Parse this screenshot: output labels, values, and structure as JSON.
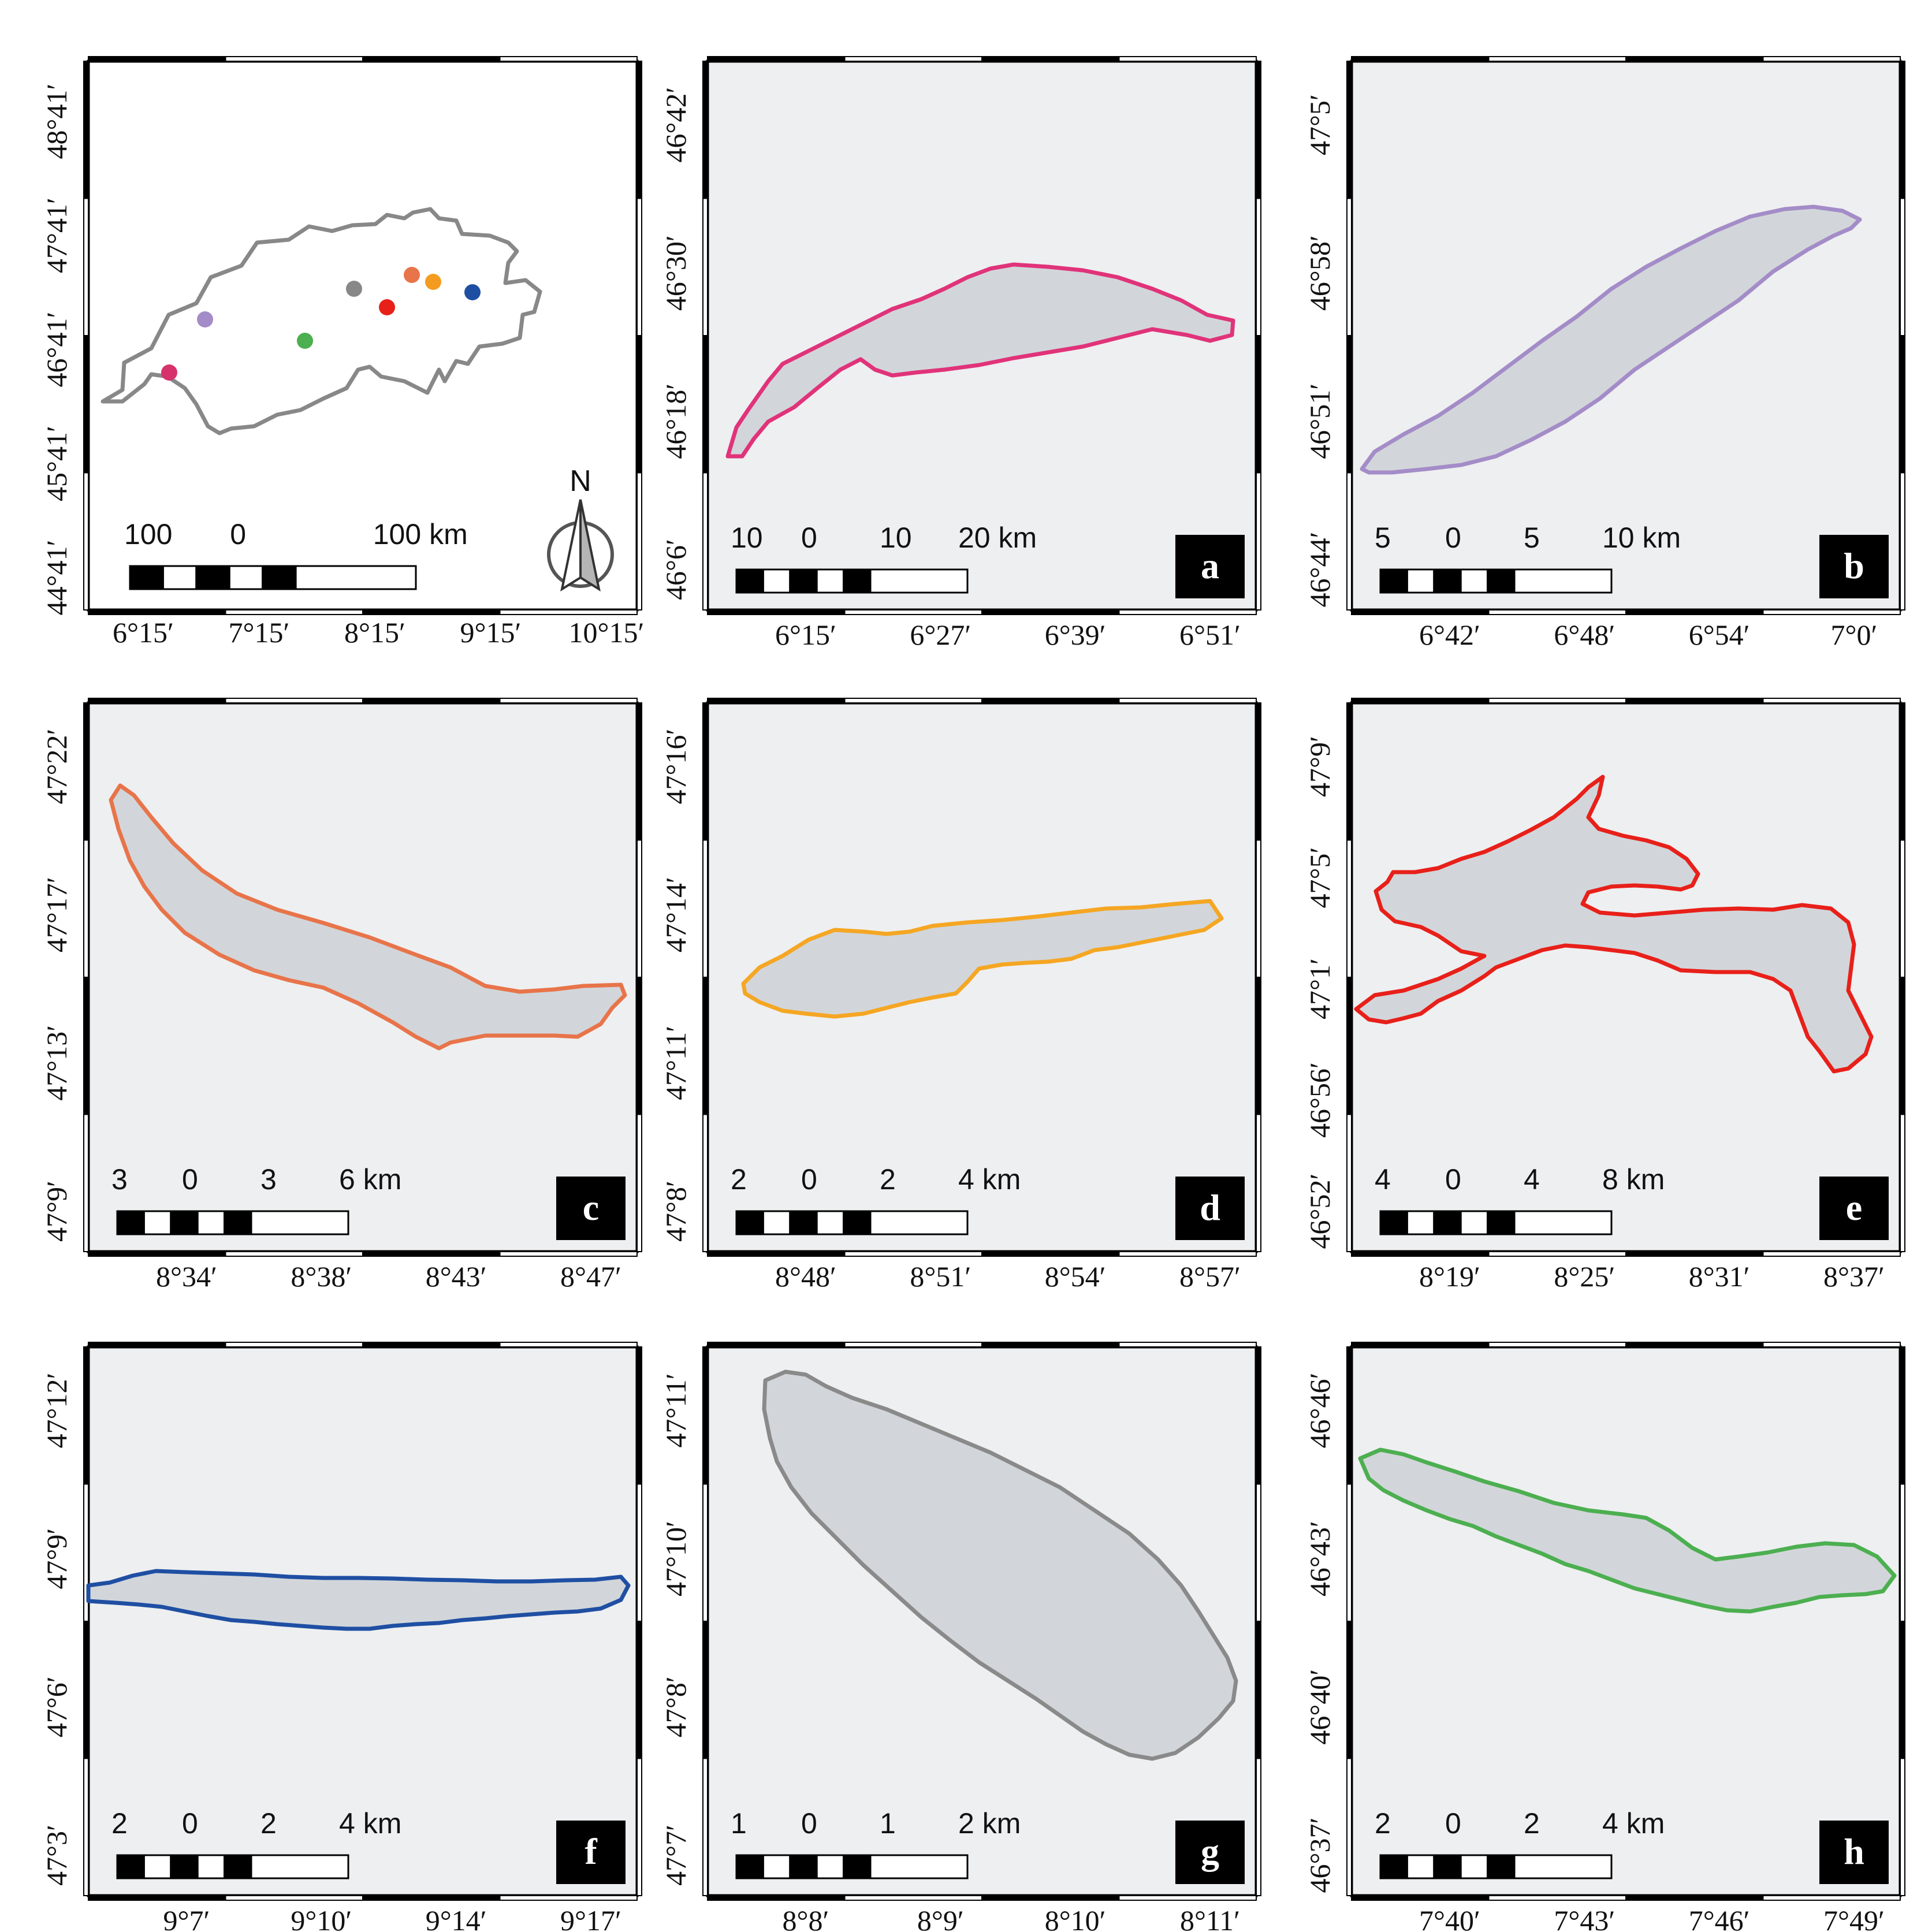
{
  "figure": {
    "background_map_color": "#eeeff0",
    "lake_fill": "#d2d6da",
    "transect_color": "#5cbd4c",
    "overview": {
      "y_labels": [
        "48°41′",
        "47°41′",
        "46°41′",
        "45°41′",
        "44°41′"
      ],
      "x_labels": [
        "6°15′",
        "7°15′",
        "8°15′",
        "9°15′",
        "10°15′"
      ],
      "scale_labels": [
        "100",
        "0",
        "100 km"
      ],
      "north_label": "N",
      "border_color": "#888888",
      "sites": [
        {
          "id": "a",
          "color": "#d6336c"
        },
        {
          "id": "b",
          "color": "#a48cc8"
        },
        {
          "id": "c",
          "color": "#e8744a"
        },
        {
          "id": "d",
          "color": "#f39c1f"
        },
        {
          "id": "e",
          "color": "#e8201a"
        },
        {
          "id": "f",
          "color": "#1f4fa3"
        },
        {
          "id": "g",
          "color": "#888888"
        },
        {
          "id": "h",
          "color": "#4caf50"
        }
      ]
    },
    "panels": [
      {
        "letter": "a",
        "outline": "#e0337a",
        "y_labels": [
          "46°42′",
          "46°30′",
          "46°18′",
          "46°6′"
        ],
        "x_labels": [
          "6°15′",
          "6°27′",
          "6°39′",
          "6°51′"
        ],
        "scale_labels": [
          "10",
          "0",
          "10",
          "20 km"
        ]
      },
      {
        "letter": "b",
        "outline": "#a48cc8",
        "y_labels": [
          "47°5′",
          "46°58′",
          "46°51′",
          "46°44′"
        ],
        "x_labels": [
          "6°42′",
          "6°48′",
          "6°54′",
          "7°0′"
        ],
        "scale_labels": [
          "5",
          "0",
          "5",
          "10 km"
        ]
      },
      {
        "letter": "c",
        "outline": "#e8744a",
        "y_labels": [
          "47°22′",
          "47°17′",
          "47°13′",
          "47°9′"
        ],
        "x_labels": [
          "8°34′",
          "8°38′",
          "8°43′",
          "8°47′"
        ],
        "scale_labels": [
          "3",
          "0",
          "3",
          "6 km"
        ]
      },
      {
        "letter": "d",
        "outline": "#f5a623",
        "y_labels": [
          "47°16′",
          "47°14′",
          "47°11′",
          "47°8′"
        ],
        "x_labels": [
          "8°48′",
          "8°51′",
          "8°54′",
          "8°57′"
        ],
        "scale_labels": [
          "2",
          "0",
          "2",
          "4 km"
        ]
      },
      {
        "letter": "e",
        "outline": "#e8201a",
        "y_labels": [
          "47°9′",
          "47°5′",
          "47°1′",
          "46°56′",
          "46°52′"
        ],
        "x_labels": [
          "8°19′",
          "8°25′",
          "8°31′",
          "8°37′"
        ],
        "scale_labels": [
          "4",
          "0",
          "4",
          "8 km"
        ]
      },
      {
        "letter": "f",
        "outline": "#1f4fa3",
        "y_labels": [
          "47°12′",
          "47°9′",
          "47°6′",
          "47°3′"
        ],
        "x_labels": [
          "9°7′",
          "9°10′",
          "9°14′",
          "9°17′"
        ],
        "scale_labels": [
          "2",
          "0",
          "2",
          "4 km"
        ]
      },
      {
        "letter": "g",
        "outline": "#8a8a8a",
        "y_labels": [
          "47°11′",
          "47°10′",
          "47°8′",
          "47°7′"
        ],
        "x_labels": [
          "8°8′",
          "8°9′",
          "8°10′",
          "8°11′"
        ],
        "scale_labels": [
          "1",
          "0",
          "1",
          "2 km"
        ]
      },
      {
        "letter": "h",
        "outline": "#4caf50",
        "y_labels": [
          "46°46′",
          "46°43′",
          "46°40′",
          "46°37′"
        ],
        "x_labels": [
          "7°40′",
          "7°43′",
          "7°46′",
          "7°49′"
        ],
        "scale_labels": [
          "2",
          "0",
          "2",
          "4 km"
        ]
      }
    ]
  }
}
